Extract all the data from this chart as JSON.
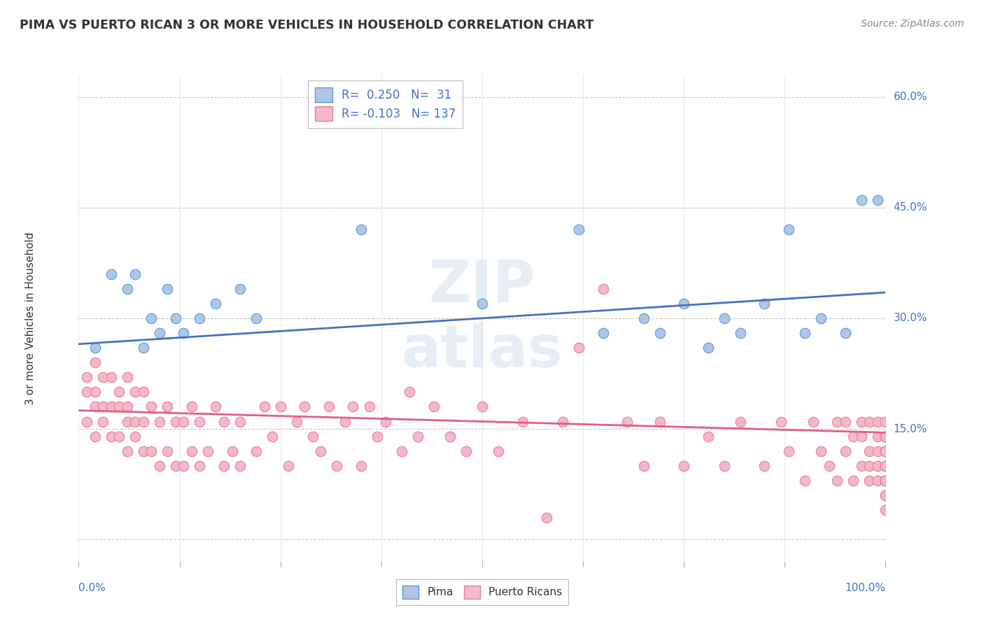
{
  "title": "PIMA VS PUERTO RICAN 3 OR MORE VEHICLES IN HOUSEHOLD CORRELATION CHART",
  "source": "Source: ZipAtlas.com",
  "ylabel": "3 or more Vehicles in Household",
  "ytick_vals": [
    0.0,
    0.15,
    0.3,
    0.45,
    0.6
  ],
  "ytick_labels": [
    "",
    "15.0%",
    "30.0%",
    "45.0%",
    "60.0%"
  ],
  "pima_color": "#aec6e8",
  "pima_edge_color": "#5b9bd5",
  "puerto_color": "#f4b8c8",
  "puerto_edge_color": "#e8809a",
  "pima_line_color": "#4472C4",
  "puerto_line_color": "#e06080",
  "watermark_color": "#d0d8e8",
  "pima_x": [
    0.02,
    0.04,
    0.06,
    0.07,
    0.08,
    0.09,
    0.1,
    0.11,
    0.12,
    0.13,
    0.15,
    0.17,
    0.2,
    0.22,
    0.35,
    0.5,
    0.62,
    0.65,
    0.7,
    0.72,
    0.75,
    0.78,
    0.8,
    0.82,
    0.85,
    0.88,
    0.9,
    0.92,
    0.95,
    0.97,
    0.99
  ],
  "pima_y": [
    0.26,
    0.36,
    0.34,
    0.36,
    0.26,
    0.3,
    0.28,
    0.34,
    0.3,
    0.28,
    0.3,
    0.32,
    0.34,
    0.3,
    0.42,
    0.32,
    0.42,
    0.28,
    0.3,
    0.28,
    0.32,
    0.26,
    0.3,
    0.28,
    0.32,
    0.42,
    0.28,
    0.3,
    0.28,
    0.46,
    0.46
  ],
  "puerto_x": [
    0.01,
    0.01,
    0.01,
    0.02,
    0.02,
    0.02,
    0.02,
    0.03,
    0.03,
    0.03,
    0.04,
    0.04,
    0.04,
    0.05,
    0.05,
    0.05,
    0.06,
    0.06,
    0.06,
    0.06,
    0.07,
    0.07,
    0.07,
    0.08,
    0.08,
    0.08,
    0.09,
    0.09,
    0.1,
    0.1,
    0.11,
    0.11,
    0.12,
    0.12,
    0.13,
    0.13,
    0.14,
    0.14,
    0.15,
    0.15,
    0.16,
    0.17,
    0.18,
    0.18,
    0.19,
    0.2,
    0.2,
    0.22,
    0.23,
    0.24,
    0.25,
    0.26,
    0.27,
    0.28,
    0.29,
    0.3,
    0.31,
    0.32,
    0.33,
    0.34,
    0.35,
    0.36,
    0.37,
    0.38,
    0.4,
    0.41,
    0.42,
    0.44,
    0.46,
    0.48,
    0.5,
    0.52,
    0.55,
    0.58,
    0.6,
    0.62,
    0.65,
    0.68,
    0.7,
    0.72,
    0.75,
    0.78,
    0.8,
    0.82,
    0.85,
    0.87,
    0.88,
    0.9,
    0.91,
    0.92,
    0.93,
    0.94,
    0.94,
    0.95,
    0.95,
    0.96,
    0.96,
    0.97,
    0.97,
    0.97,
    0.98,
    0.98,
    0.98,
    0.98,
    0.99,
    0.99,
    0.99,
    0.99,
    0.99,
    1.0,
    1.0,
    1.0,
    1.0,
    1.0,
    1.0,
    1.0,
    1.0,
    1.0,
    1.0,
    1.0,
    1.0,
    1.0,
    1.0,
    1.0,
    1.0,
    1.0,
    1.0,
    1.0,
    1.0,
    1.0,
    1.0,
    1.0,
    1.0,
    1.0,
    1.0,
    1.0
  ],
  "puerto_y": [
    0.16,
    0.2,
    0.22,
    0.14,
    0.18,
    0.2,
    0.24,
    0.16,
    0.18,
    0.22,
    0.14,
    0.18,
    0.22,
    0.14,
    0.18,
    0.2,
    0.12,
    0.16,
    0.18,
    0.22,
    0.14,
    0.16,
    0.2,
    0.12,
    0.16,
    0.2,
    0.12,
    0.18,
    0.1,
    0.16,
    0.12,
    0.18,
    0.1,
    0.16,
    0.1,
    0.16,
    0.12,
    0.18,
    0.1,
    0.16,
    0.12,
    0.18,
    0.1,
    0.16,
    0.12,
    0.1,
    0.16,
    0.12,
    0.18,
    0.14,
    0.18,
    0.1,
    0.16,
    0.18,
    0.14,
    0.12,
    0.18,
    0.1,
    0.16,
    0.18,
    0.1,
    0.18,
    0.14,
    0.16,
    0.12,
    0.2,
    0.14,
    0.18,
    0.14,
    0.12,
    0.18,
    0.12,
    0.16,
    0.03,
    0.16,
    0.26,
    0.34,
    0.16,
    0.1,
    0.16,
    0.1,
    0.14,
    0.1,
    0.16,
    0.1,
    0.16,
    0.12,
    0.08,
    0.16,
    0.12,
    0.1,
    0.16,
    0.08,
    0.12,
    0.16,
    0.08,
    0.14,
    0.1,
    0.14,
    0.16,
    0.08,
    0.12,
    0.16,
    0.1,
    0.1,
    0.14,
    0.16,
    0.08,
    0.12,
    0.1,
    0.14,
    0.08,
    0.12,
    0.16,
    0.06,
    0.12,
    0.14,
    0.08,
    0.12,
    0.1,
    0.14,
    0.16,
    0.08,
    0.12,
    0.06,
    0.1,
    0.14,
    0.08,
    0.12,
    0.04,
    0.1,
    0.08,
    0.12,
    0.14,
    0.06,
    0.1
  ]
}
